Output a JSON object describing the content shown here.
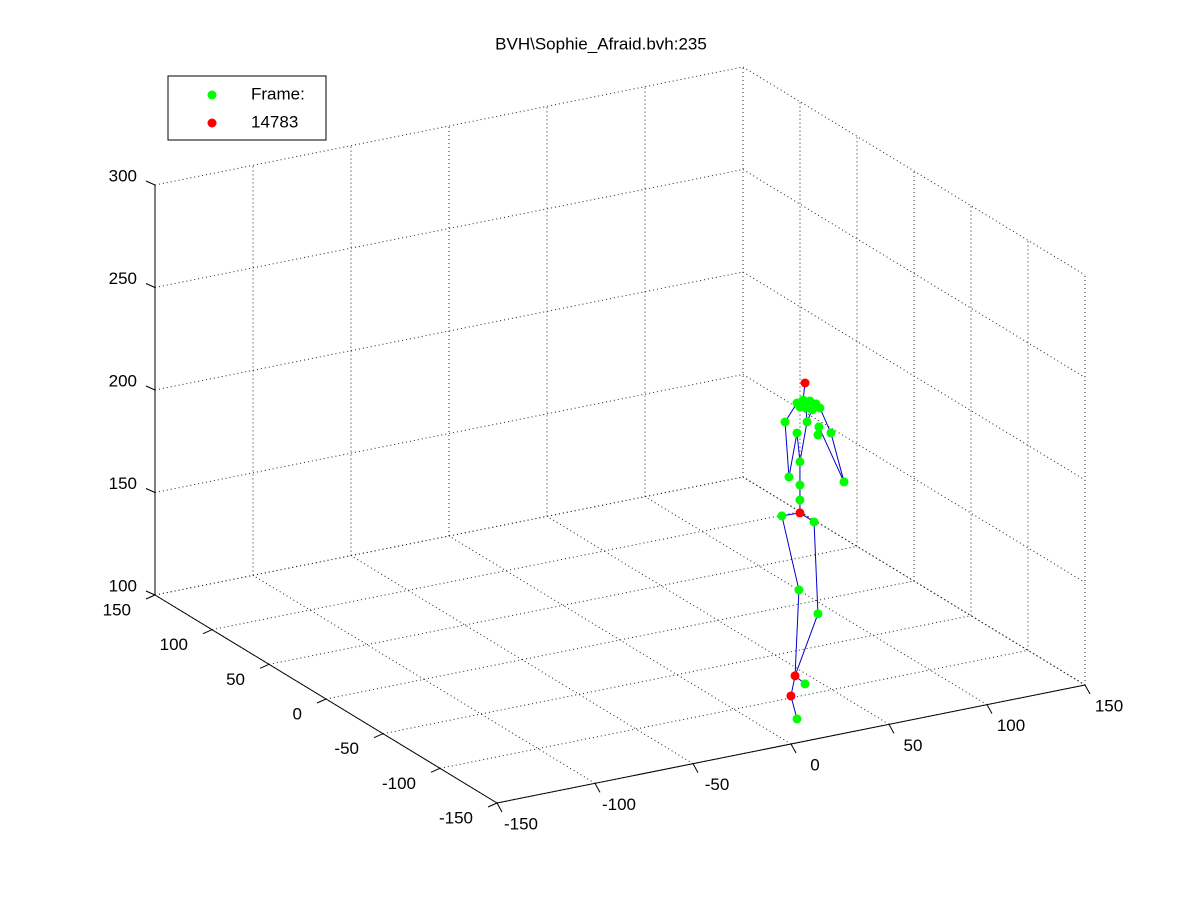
{
  "chart_data": {
    "type": "scatter3d",
    "title": "BVH\\Sophie_Afraid.bvh:235",
    "xlim": [
      -150,
      150
    ],
    "xticks": [
      -150,
      -100,
      -50,
      0,
      50,
      100,
      150
    ],
    "ylim": [
      -150,
      150
    ],
    "yticks": [
      -150,
      -100,
      -50,
      0,
      50,
      100,
      150
    ],
    "zlim": [
      100,
      300
    ],
    "zticks": [
      100,
      150,
      200,
      250,
      300
    ],
    "grid": true,
    "legend": "upper-left",
    "series": [
      {
        "name": "Frame:",
        "color": "#00ff00",
        "x": [
          17.6,
          20.7,
          24.2,
          27.3,
          29.3,
          25.3,
          22.2,
          19.1,
          11.5,
          17.6,
          22.7,
          28.8,
          28.3,
          34.9,
          41.6,
          19.1,
          13.5,
          19.1,
          19.1,
          9.9,
          26.3,
          18.6,
          28.3,
          21.7,
          17.6
        ],
        "y": [
          -125,
          -125,
          -125,
          -125,
          -125,
          -125,
          -125,
          -125,
          -125,
          -125,
          -125,
          -125,
          -125,
          -125,
          -125,
          -125,
          -125,
          -125,
          -125,
          -125,
          -125,
          -125,
          -125,
          -125,
          -125
        ],
        "z": [
          254.5,
          255.4,
          254.2,
          252.2,
          249.8,
          249.7,
          251.2,
          252.3,
          246.4,
          239.9,
          244.3,
          240.7,
          236.9,
          236.6,
          211.4,
          225.5,
          219.2,
          214.2,
          206.9,
          200.9,
          194.8,
          163.1,
          149.6,
          116.7,
          100.4
        ]
      },
      {
        "name": "14783",
        "color": "#ff0000",
        "x": [
          21.7,
          19.1,
          16.6,
          14.5
        ],
        "y": [
          -125,
          -125,
          -125,
          -125
        ],
        "z": [
          263.5,
          200.6,
          121.6,
          112.2
        ]
      }
    ]
  }
}
